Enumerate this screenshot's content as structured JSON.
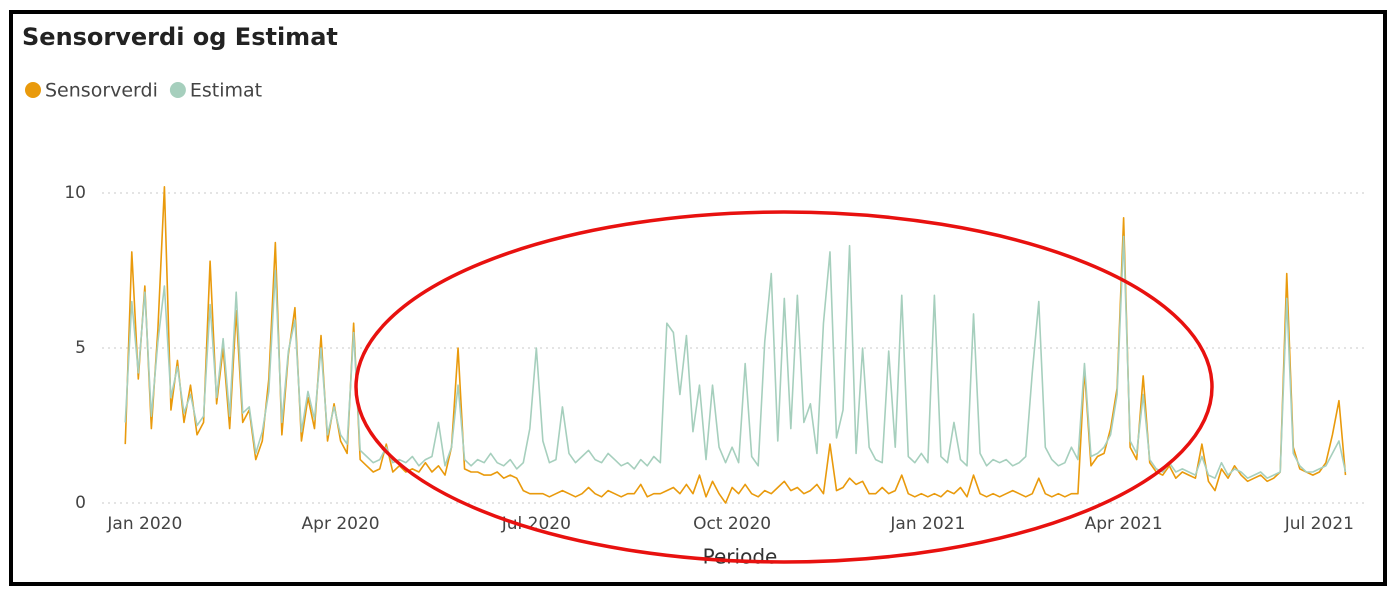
{
  "chart_data": {
    "type": "line",
    "title": "Sensorverdi og Estimat",
    "x_label": "Periode",
    "legend": "top-left",
    "grid": true,
    "xlim": [
      -0.35,
      18.5
    ],
    "ylim": [
      0,
      11
    ],
    "xticks": [
      {
        "value": 0,
        "label": "Jan 2020"
      },
      {
        "value": 3,
        "label": "Apr 2020"
      },
      {
        "value": 6,
        "label": "Jul 2020"
      },
      {
        "value": 9,
        "label": "Oct 2020"
      },
      {
        "value": 12,
        "label": "Jan 2021"
      },
      {
        "value": 15,
        "label": "Apr 2021"
      },
      {
        "value": 18,
        "label": "Jul 2021"
      }
    ],
    "yticks": [
      0,
      5,
      10
    ],
    "x": [
      -0.3,
      -0.2,
      -0.1,
      0,
      0.1,
      0.2,
      0.3,
      0.4,
      0.5,
      0.6,
      0.7,
      0.8,
      0.9,
      1,
      1.1,
      1.2,
      1.3,
      1.4,
      1.5,
      1.6,
      1.7,
      1.8,
      1.9,
      2,
      2.1,
      2.2,
      2.3,
      2.4,
      2.5,
      2.6,
      2.7,
      2.8,
      2.9,
      3,
      3.1,
      3.2,
      3.3,
      3.4,
      3.5,
      3.6,
      3.7,
      3.8,
      3.9,
      4,
      4.1,
      4.2,
      4.3,
      4.4,
      4.5,
      4.6,
      4.7,
      4.8,
      4.9,
      5,
      5.1,
      5.2,
      5.3,
      5.4,
      5.5,
      5.6,
      5.7,
      5.8,
      5.9,
      6,
      6.1,
      6.2,
      6.3,
      6.4,
      6.5,
      6.6,
      6.7,
      6.8,
      6.9,
      7,
      7.1,
      7.2,
      7.3,
      7.4,
      7.5,
      7.6,
      7.7,
      7.8,
      7.9,
      8,
      8.1,
      8.2,
      8.3,
      8.4,
      8.5,
      8.6,
      8.7,
      8.8,
      8.9,
      9,
      9.1,
      9.2,
      9.3,
      9.4,
      9.5,
      9.6,
      9.7,
      9.8,
      9.9,
      10,
      10.1,
      10.2,
      10.3,
      10.4,
      10.5,
      10.6,
      10.7,
      10.8,
      10.9,
      11,
      11.1,
      11.2,
      11.3,
      11.4,
      11.5,
      11.6,
      11.7,
      11.8,
      11.9,
      12,
      12.1,
      12.2,
      12.3,
      12.4,
      12.5,
      12.6,
      12.7,
      12.8,
      12.9,
      13,
      13.1,
      13.2,
      13.3,
      13.4,
      13.5,
      13.6,
      13.7,
      13.8,
      13.9,
      14,
      14.1,
      14.2,
      14.3,
      14.4,
      14.5,
      14.6,
      14.7,
      14.8,
      14.9,
      15,
      15.1,
      15.2,
      15.3,
      15.4,
      15.5,
      15.6,
      15.7,
      15.8,
      15.9,
      16,
      16.1,
      16.2,
      16.3,
      16.4,
      16.5,
      16.6,
      16.7,
      16.8,
      16.9,
      17,
      17.1,
      17.2,
      17.3,
      17.4,
      17.5,
      17.6,
      17.7,
      17.8,
      17.9,
      18,
      18.1,
      18.2,
      18.3,
      18.4
    ],
    "series": [
      {
        "name": "Sensorverdi",
        "color": "#e99a0c",
        "values": [
          1.9,
          8.1,
          4.0,
          7.0,
          2.4,
          5.6,
          10.2,
          3.0,
          4.6,
          2.6,
          3.8,
          2.2,
          2.6,
          7.8,
          3.2,
          5.0,
          2.4,
          6.2,
          2.6,
          3.0,
          1.4,
          2.0,
          4.0,
          8.4,
          2.2,
          4.8,
          6.3,
          2.0,
          3.4,
          2.4,
          5.4,
          2.0,
          3.2,
          2.0,
          1.6,
          5.8,
          1.4,
          1.2,
          1.0,
          1.1,
          1.9,
          1.0,
          1.2,
          1.0,
          1.1,
          1.0,
          1.3,
          1.0,
          1.2,
          0.9,
          1.8,
          5.0,
          1.1,
          1.0,
          1.0,
          0.9,
          0.9,
          1.0,
          0.8,
          0.9,
          0.8,
          0.4,
          0.3,
          0.3,
          0.3,
          0.2,
          0.3,
          0.4,
          0.3,
          0.2,
          0.3,
          0.5,
          0.3,
          0.2,
          0.4,
          0.3,
          0.2,
          0.3,
          0.3,
          0.6,
          0.2,
          0.3,
          0.3,
          0.4,
          0.5,
          0.3,
          0.6,
          0.3,
          0.9,
          0.2,
          0.7,
          0.3,
          0.0,
          0.5,
          0.3,
          0.6,
          0.3,
          0.2,
          0.4,
          0.3,
          0.5,
          0.7,
          0.4,
          0.5,
          0.3,
          0.4,
          0.6,
          0.3,
          1.9,
          0.4,
          0.5,
          0.8,
          0.6,
          0.7,
          0.3,
          0.3,
          0.5,
          0.3,
          0.4,
          0.9,
          0.3,
          0.2,
          0.3,
          0.2,
          0.3,
          0.2,
          0.4,
          0.3,
          0.5,
          0.2,
          0.9,
          0.3,
          0.2,
          0.3,
          0.2,
          0.3,
          0.4,
          0.3,
          0.2,
          0.3,
          0.8,
          0.3,
          0.2,
          0.3,
          0.2,
          0.3,
          0.3,
          4.3,
          1.2,
          1.5,
          1.6,
          2.4,
          3.7,
          9.2,
          1.8,
          1.4,
          4.1,
          1.3,
          1.0,
          0.9,
          1.2,
          0.8,
          1.0,
          0.9,
          0.8,
          1.9,
          0.7,
          0.4,
          1.1,
          0.8,
          1.2,
          0.9,
          0.7,
          0.8,
          0.9,
          0.7,
          0.8,
          1.0,
          7.4,
          1.8,
          1.1,
          1.0,
          0.9,
          1.0,
          1.3,
          2.2,
          3.3,
          0.9
        ]
      },
      {
        "name": "Estimat",
        "color": "#a6cfbd",
        "values": [
          2.6,
          6.5,
          4.2,
          6.8,
          2.8,
          5.2,
          7.0,
          3.4,
          4.4,
          2.9,
          3.5,
          2.5,
          2.8,
          6.4,
          3.4,
          5.3,
          2.8,
          6.8,
          2.9,
          3.1,
          1.6,
          2.3,
          3.6,
          7.5,
          2.6,
          4.9,
          5.9,
          2.3,
          3.6,
          2.7,
          5.0,
          2.2,
          3.1,
          2.2,
          1.9,
          5.5,
          1.7,
          1.5,
          1.3,
          1.4,
          1.8,
          1.3,
          1.4,
          1.3,
          1.5,
          1.2,
          1.4,
          1.5,
          2.6,
          1.2,
          1.8,
          3.8,
          1.4,
          1.2,
          1.4,
          1.3,
          1.6,
          1.3,
          1.2,
          1.4,
          1.1,
          1.3,
          2.4,
          5.0,
          2.0,
          1.3,
          1.4,
          3.1,
          1.6,
          1.3,
          1.5,
          1.7,
          1.4,
          1.3,
          1.6,
          1.4,
          1.2,
          1.3,
          1.1,
          1.4,
          1.2,
          1.5,
          1.3,
          5.8,
          5.5,
          3.5,
          5.4,
          2.3,
          3.8,
          1.4,
          3.8,
          1.8,
          1.3,
          1.8,
          1.3,
          4.5,
          1.5,
          1.2,
          5.2,
          7.4,
          2.0,
          6.6,
          2.4,
          6.7,
          2.6,
          3.2,
          1.6,
          5.8,
          8.1,
          2.1,
          3.0,
          8.3,
          1.6,
          5.0,
          1.8,
          1.4,
          1.3,
          4.9,
          1.8,
          6.7,
          1.5,
          1.3,
          1.6,
          1.3,
          6.7,
          1.5,
          1.3,
          2.6,
          1.4,
          1.2,
          6.1,
          1.6,
          1.2,
          1.4,
          1.3,
          1.4,
          1.2,
          1.3,
          1.5,
          4.2,
          6.5,
          1.8,
          1.4,
          1.2,
          1.3,
          1.8,
          1.4,
          4.5,
          1.5,
          1.6,
          1.8,
          2.2,
          3.5,
          8.6,
          2.0,
          1.6,
          3.5,
          1.4,
          1.1,
          1.0,
          1.3,
          1.0,
          1.1,
          1.0,
          0.9,
          1.5,
          0.9,
          0.8,
          1.3,
          0.9,
          1.1,
          1.0,
          0.8,
          0.9,
          1.0,
          0.8,
          0.9,
          1.0,
          6.6,
          1.6,
          1.2,
          1.0,
          1.0,
          1.1,
          1.2,
          1.6,
          2.0,
          1.0
        ]
      }
    ]
  }
}
